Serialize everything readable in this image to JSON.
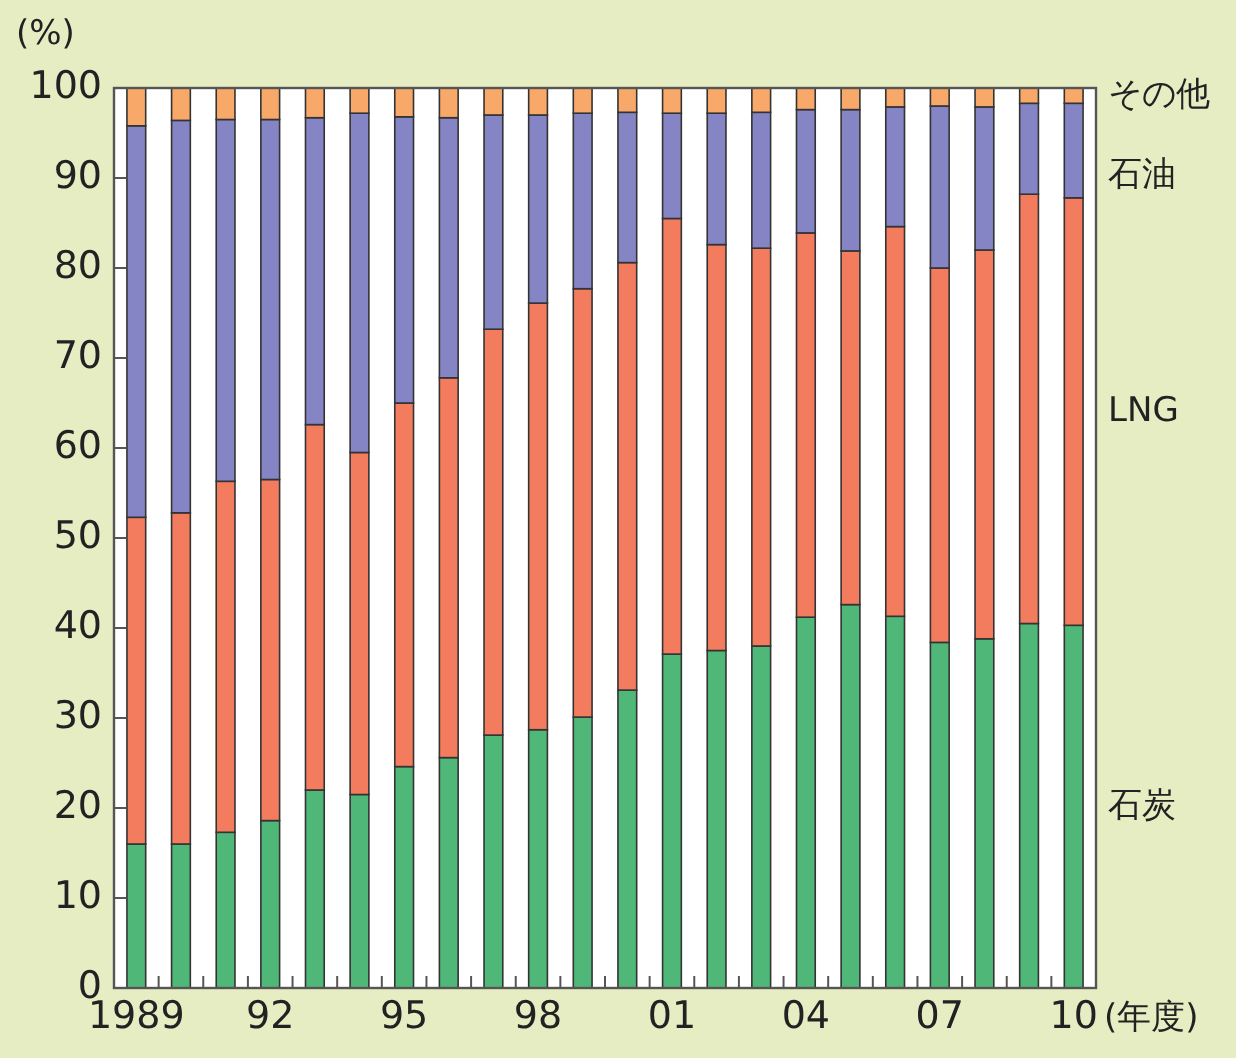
{
  "chart_data": {
    "type": "bar",
    "stacked": true,
    "ylabel": "(%)",
    "xlabel": "(年度)",
    "categories": [
      "1989",
      null,
      null,
      "92",
      null,
      null,
      "95",
      null,
      null,
      "98",
      null,
      null,
      "01",
      null,
      null,
      "04",
      null,
      null,
      "07",
      null,
      null,
      "10"
    ],
    "series": [
      {
        "name": "石炭",
        "color": "#4fb878",
        "values": [
          16,
          16,
          17.3,
          18.6,
          22,
          21.5,
          24.6,
          25.6,
          28.1,
          28.7,
          30.1,
          33.1,
          37.1,
          37.5,
          38,
          41.2,
          42.6,
          41.3,
          38.4,
          38.8,
          40.5,
          40.3
        ]
      },
      {
        "name": "LNG",
        "color": "#f47c5e",
        "values": [
          36.3,
          36.8,
          39.0,
          37.9,
          40.6,
          38.0,
          40.4,
          42.2,
          45.1,
          47.4,
          47.6,
          47.5,
          48.4,
          45.1,
          44.2,
          42.7,
          39.3,
          43.3,
          41.6,
          43.2,
          47.7,
          47.5
        ]
      },
      {
        "name": "石油",
        "color": "#8584c4",
        "values": [
          43.5,
          43.6,
          40.2,
          40.0,
          34.1,
          37.7,
          31.8,
          28.9,
          23.8,
          20.9,
          19.5,
          16.7,
          11.7,
          14.6,
          15.1,
          13.7,
          15.7,
          13.3,
          18.0,
          15.9,
          10.1,
          10.5
        ]
      },
      {
        "name": "その他",
        "color": "#f8a868",
        "values": [
          4.2,
          3.6,
          3.5,
          3.5,
          3.3,
          2.8,
          3.2,
          3.3,
          3.0,
          3.0,
          2.8,
          2.7,
          2.8,
          2.8,
          2.7,
          2.4,
          2.4,
          2.1,
          2.0,
          2.1,
          1.7,
          1.7
        ]
      }
    ],
    "ylim": [
      0,
      100
    ],
    "yticks": [
      0,
      10,
      20,
      30,
      40,
      50,
      60,
      70,
      80,
      90,
      100
    ]
  }
}
